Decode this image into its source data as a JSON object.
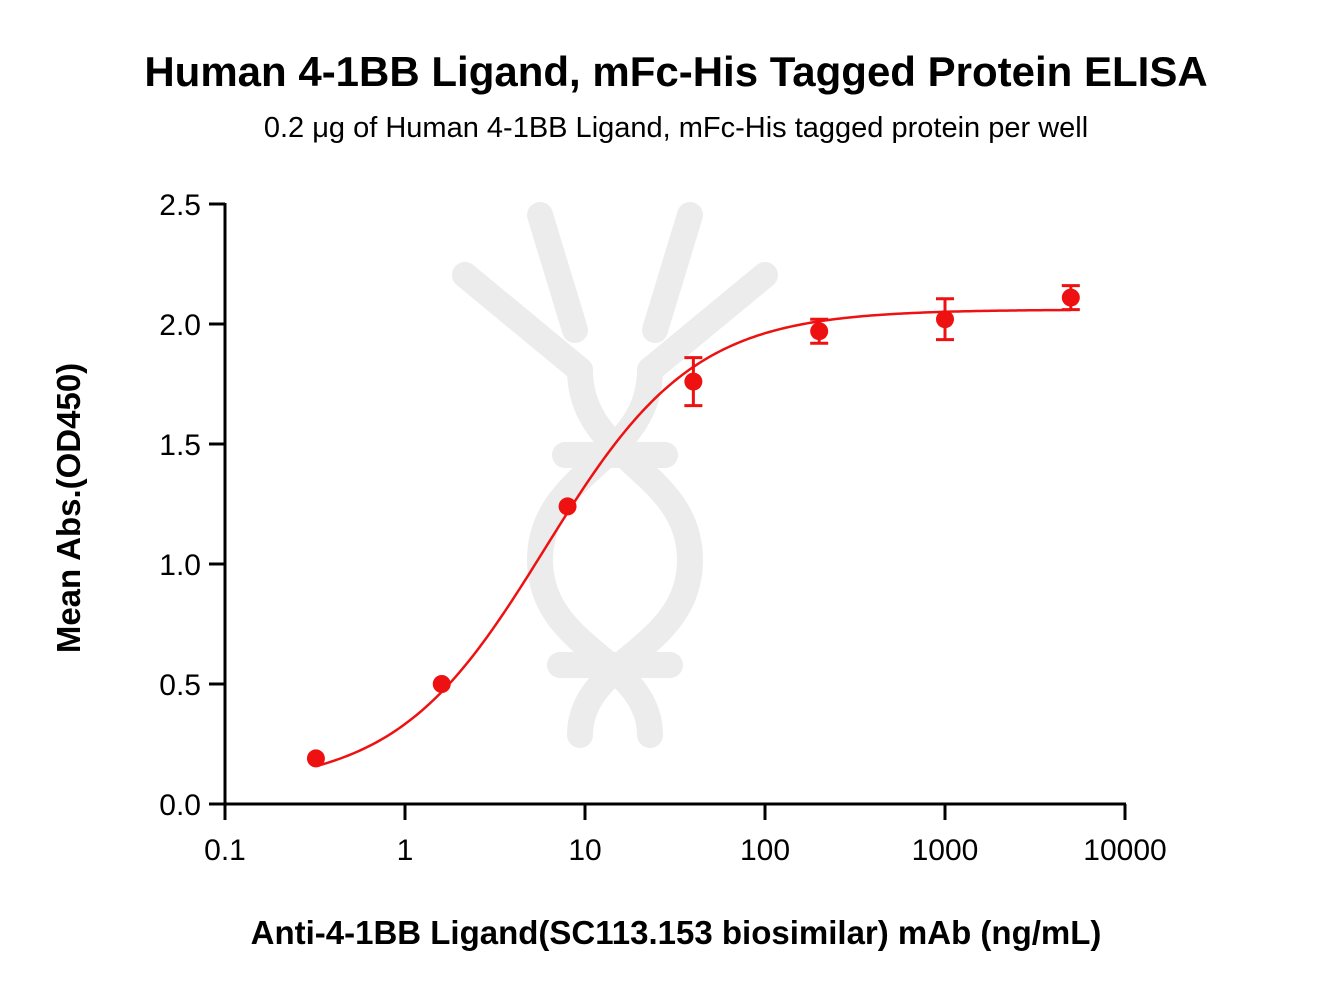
{
  "chart_data": {
    "type": "scatter",
    "title": "Human 4-1BB Ligand, mFc-His Tagged Protein ELISA",
    "subtitle_prefix": "0.2 ",
    "subtitle_unit": "μg",
    "subtitle_suffix": " of Human 4-1BB Ligand, mFc-His tagged protein per well",
    "xlabel": "Anti-4-1BB Ligand(SC113.153 biosimilar) mAb (ng/mL)",
    "ylabel": "Mean Abs.(OD450)",
    "xscale": "log",
    "xlim": [
      0.1,
      10000
    ],
    "ylim": [
      0,
      2.5
    ],
    "x_ticks": [
      0.1,
      1,
      10,
      100,
      1000,
      10000
    ],
    "x_tick_labels": [
      "0.1",
      "1",
      "10",
      "100",
      "1000",
      "10000"
    ],
    "y_ticks": [
      0,
      0.5,
      1.0,
      1.5,
      2.0,
      2.5
    ],
    "y_tick_labels": [
      "0.0",
      "0.5",
      "1.0",
      "1.5",
      "2.0",
      "2.5"
    ],
    "grid": false,
    "series": [
      {
        "color": "#ee1111",
        "x": [
          0.32,
          1.6,
          8,
          40,
          200,
          1000,
          5000
        ],
        "y": [
          0.19,
          0.5,
          1.24,
          1.76,
          1.97,
          2.02,
          2.11
        ],
        "error": [
          0.0,
          0.0,
          0.0,
          0.1,
          0.05,
          0.085,
          0.05
        ]
      }
    ],
    "fit": {
      "model": "4PL",
      "bottom": 0.07,
      "top": 2.06,
      "ec50": 6.0,
      "hill": 1.05
    }
  }
}
